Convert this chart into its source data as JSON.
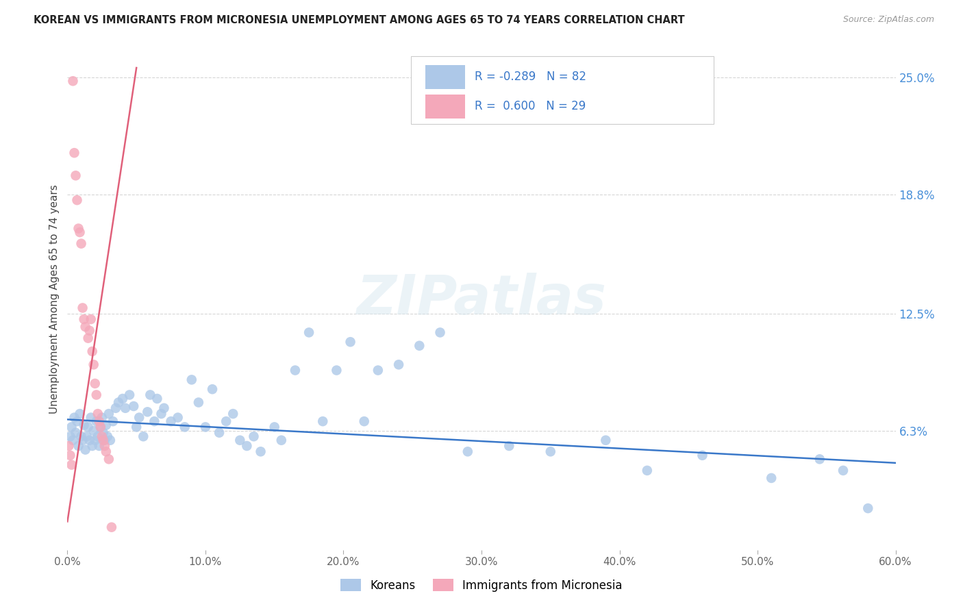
{
  "title": "KOREAN VS IMMIGRANTS FROM MICRONESIA UNEMPLOYMENT AMONG AGES 65 TO 74 YEARS CORRELATION CHART",
  "source": "Source: ZipAtlas.com",
  "ylabel": "Unemployment Among Ages 65 to 74 years",
  "xlim": [
    0.0,
    0.6
  ],
  "ylim": [
    0.0,
    0.265
  ],
  "xtick_labels": [
    "0.0%",
    "",
    "",
    "",
    "",
    "",
    "",
    "",
    "",
    "",
    "10.0%",
    "",
    "",
    "",
    "",
    "",
    "",
    "",
    "",
    "",
    "20.0%",
    "",
    "",
    "",
    "",
    "",
    "",
    "",
    "",
    "",
    "30.0%",
    "",
    "",
    "",
    "",
    "",
    "",
    "",
    "",
    "",
    "40.0%",
    "",
    "",
    "",
    "",
    "",
    "",
    "",
    "",
    "",
    "50.0%",
    "",
    "",
    "",
    "",
    "",
    "",
    "",
    "",
    "",
    "60.0%"
  ],
  "xtick_values": [
    0.0,
    0.01,
    0.02,
    0.03,
    0.04,
    0.05,
    0.06,
    0.07,
    0.08,
    0.09,
    0.1,
    0.11,
    0.12,
    0.13,
    0.14,
    0.15,
    0.16,
    0.17,
    0.18,
    0.19,
    0.2,
    0.21,
    0.22,
    0.23,
    0.24,
    0.25,
    0.26,
    0.27,
    0.28,
    0.29,
    0.3,
    0.31,
    0.32,
    0.33,
    0.34,
    0.35,
    0.36,
    0.37,
    0.38,
    0.39,
    0.4,
    0.41,
    0.42,
    0.43,
    0.44,
    0.45,
    0.46,
    0.47,
    0.48,
    0.49,
    0.5,
    0.51,
    0.52,
    0.53,
    0.54,
    0.55,
    0.56,
    0.57,
    0.58,
    0.59,
    0.6
  ],
  "ytick_right_labels": [
    "6.3%",
    "12.5%",
    "18.8%",
    "25.0%"
  ],
  "ytick_right_values": [
    0.063,
    0.125,
    0.188,
    0.25
  ],
  "korean_color": "#adc8e8",
  "micronesia_color": "#f4a8ba",
  "korean_line_color": "#3a78c9",
  "micronesia_line_color": "#e0607a",
  "R_korean": -0.289,
  "N_korean": 82,
  "R_micronesia": 0.6,
  "N_micronesia": 29,
  "legend_label_korean": "Koreans",
  "legend_label_micronesia": "Immigrants from Micronesia",
  "watermark": "ZIPatlas",
  "background_color": "#ffffff",
  "grid_color": "#cccccc",
  "korean_x": [
    0.002,
    0.003,
    0.004,
    0.005,
    0.006,
    0.007,
    0.008,
    0.009,
    0.01,
    0.011,
    0.012,
    0.013,
    0.014,
    0.015,
    0.016,
    0.017,
    0.018,
    0.019,
    0.02,
    0.021,
    0.022,
    0.023,
    0.024,
    0.025,
    0.026,
    0.027,
    0.028,
    0.029,
    0.03,
    0.031,
    0.033,
    0.035,
    0.037,
    0.04,
    0.042,
    0.045,
    0.048,
    0.05,
    0.052,
    0.055,
    0.058,
    0.06,
    0.063,
    0.065,
    0.068,
    0.07,
    0.075,
    0.08,
    0.085,
    0.09,
    0.095,
    0.1,
    0.105,
    0.11,
    0.115,
    0.12,
    0.125,
    0.13,
    0.135,
    0.14,
    0.15,
    0.155,
    0.165,
    0.175,
    0.185,
    0.195,
    0.205,
    0.215,
    0.225,
    0.24,
    0.255,
    0.27,
    0.29,
    0.32,
    0.35,
    0.39,
    0.42,
    0.46,
    0.51,
    0.545,
    0.562,
    0.58
  ],
  "korean_y": [
    0.06,
    0.065,
    0.058,
    0.07,
    0.062,
    0.068,
    0.055,
    0.072,
    0.06,
    0.058,
    0.066,
    0.053,
    0.06,
    0.065,
    0.058,
    0.07,
    0.055,
    0.063,
    0.058,
    0.068,
    0.06,
    0.055,
    0.065,
    0.07,
    0.062,
    0.058,
    0.066,
    0.06,
    0.072,
    0.058,
    0.068,
    0.075,
    0.078,
    0.08,
    0.075,
    0.082,
    0.076,
    0.065,
    0.07,
    0.06,
    0.073,
    0.082,
    0.068,
    0.08,
    0.072,
    0.075,
    0.068,
    0.07,
    0.065,
    0.09,
    0.078,
    0.065,
    0.085,
    0.062,
    0.068,
    0.072,
    0.058,
    0.055,
    0.06,
    0.052,
    0.065,
    0.058,
    0.095,
    0.115,
    0.068,
    0.095,
    0.11,
    0.068,
    0.095,
    0.098,
    0.108,
    0.115,
    0.052,
    0.055,
    0.052,
    0.058,
    0.042,
    0.05,
    0.038,
    0.048,
    0.042,
    0.022
  ],
  "micronesia_x": [
    0.001,
    0.002,
    0.003,
    0.004,
    0.005,
    0.006,
    0.007,
    0.008,
    0.009,
    0.01,
    0.011,
    0.012,
    0.013,
    0.015,
    0.016,
    0.017,
    0.018,
    0.019,
    0.02,
    0.021,
    0.022,
    0.023,
    0.024,
    0.025,
    0.026,
    0.027,
    0.028,
    0.03,
    0.032
  ],
  "micronesia_y": [
    0.055,
    0.05,
    0.045,
    0.248,
    0.21,
    0.198,
    0.185,
    0.17,
    0.168,
    0.162,
    0.128,
    0.122,
    0.118,
    0.112,
    0.116,
    0.122,
    0.105,
    0.098,
    0.088,
    0.082,
    0.072,
    0.068,
    0.065,
    0.06,
    0.058,
    0.055,
    0.052,
    0.048,
    0.012
  ]
}
